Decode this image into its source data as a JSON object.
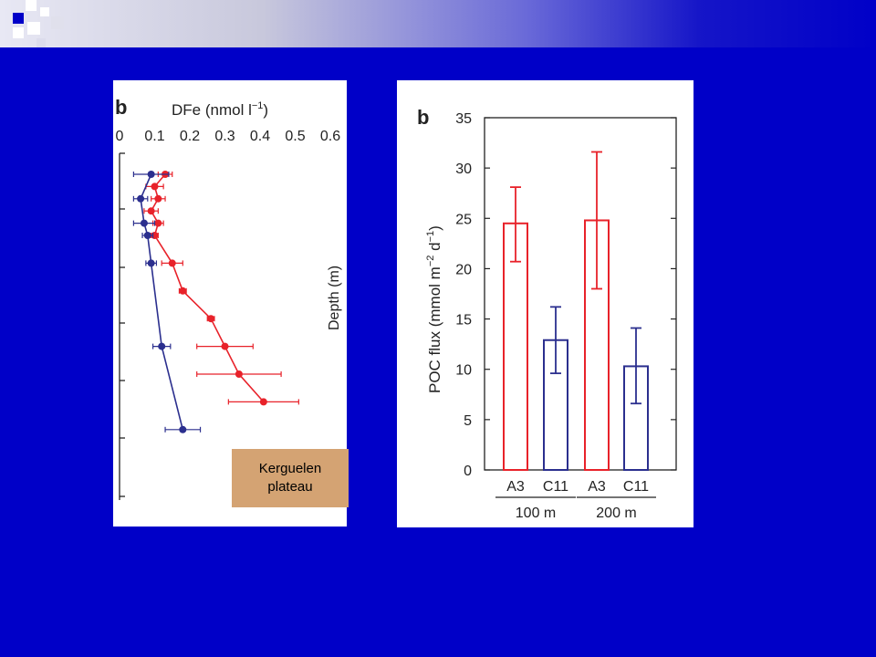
{
  "slide": {
    "background_color": "#0000c8",
    "note_lines": [
      "Kerguelen",
      "plateau"
    ],
    "note_color": "#d4a373"
  },
  "chart_data": [
    {
      "type": "line",
      "panel_letter": "b",
      "xlabel": "DFe (nmol l",
      "xlabel_sup": "−1",
      "xlabel_end": ")",
      "ylabel": "Depth (m)",
      "x_ticks": [
        "0",
        "0.1",
        "0.2",
        "0.3",
        "0.4",
        "0.5",
        "0.6"
      ],
      "xlim": [
        0,
        0.6
      ],
      "x_axis_position": "top",
      "series": [
        {
          "color": "#e8222a",
          "points": [
            {
              "x": 0.13,
              "xerr": 0.02,
              "level": 0
            },
            {
              "x": 0.1,
              "xerr": 0.025,
              "level": 1
            },
            {
              "x": 0.11,
              "xerr": 0.02,
              "level": 2
            },
            {
              "x": 0.09,
              "xerr": 0.02,
              "level": 3
            },
            {
              "x": 0.11,
              "xerr": 0.015,
              "level": 4
            },
            {
              "x": 0.1,
              "xerr": 0.01,
              "level": 5
            },
            {
              "x": 0.15,
              "xerr": 0.03,
              "level": 6
            },
            {
              "x": 0.18,
              "xerr": 0.01,
              "level": 7
            },
            {
              "x": 0.26,
              "xerr": 0.01,
              "level": 8
            },
            {
              "x": 0.3,
              "xerr": 0.08,
              "level": 9
            },
            {
              "x": 0.34,
              "xerr": 0.12,
              "level": 10
            },
            {
              "x": 0.41,
              "xerr": 0.1,
              "level": 11
            }
          ]
        },
        {
          "color": "#2b2f8e",
          "points": [
            {
              "x": 0.09,
              "xerr": 0.05,
              "level": 0
            },
            {
              "x": 0.06,
              "xerr": 0.02,
              "level": 2
            },
            {
              "x": 0.07,
              "xerr": 0.03,
              "level": 4
            },
            {
              "x": 0.08,
              "xerr": 0.015,
              "level": 5
            },
            {
              "x": 0.09,
              "xerr": 0.015,
              "level": 6
            },
            {
              "x": 0.12,
              "xerr": 0.025,
              "level": 9
            },
            {
              "x": 0.18,
              "xerr": 0.05,
              "level": 12
            }
          ]
        }
      ]
    },
    {
      "type": "bar",
      "panel_letter": "b",
      "ylabel": "POC flux (mmol m",
      "ylabel_sup1": "−2",
      "ylabel_mid": " d",
      "ylabel_sup2": "−1",
      "ylabel_end": ")",
      "ylim": [
        0,
        35
      ],
      "y_ticks": [
        0,
        5,
        10,
        15,
        20,
        25,
        30,
        35
      ],
      "categories": [
        "A3",
        "C11",
        "A3",
        "C11"
      ],
      "groups": [
        {
          "label": "100 m",
          "members": [
            0,
            1
          ]
        },
        {
          "label": "200 m",
          "members": [
            2,
            3
          ]
        }
      ],
      "bars": [
        {
          "category": "A3",
          "group": "100 m",
          "value": 24.5,
          "err_low": 20.7,
          "err_high": 28.1,
          "color": "#e8222a"
        },
        {
          "category": "C11",
          "group": "100 m",
          "value": 12.9,
          "err_low": 9.6,
          "err_high": 16.2,
          "color": "#2b2f8e"
        },
        {
          "category": "A3",
          "group": "200 m",
          "value": 24.8,
          "err_low": 18.0,
          "err_high": 31.6,
          "color": "#e8222a"
        },
        {
          "category": "C11",
          "group": "200 m",
          "value": 10.3,
          "err_low": 6.6,
          "err_high": 14.1,
          "color": "#2b2f8e"
        }
      ]
    }
  ]
}
